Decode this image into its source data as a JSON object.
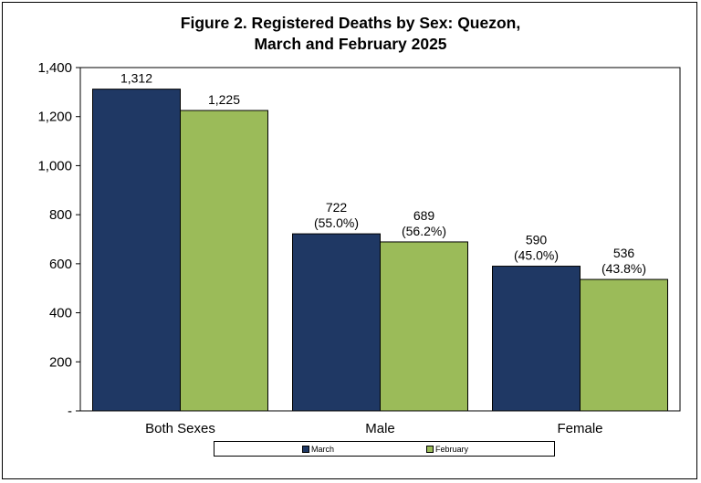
{
  "chart_data": {
    "type": "bar",
    "title_lines": [
      "Figure 2. Registered Deaths by Sex: Quezon,",
      "March and February 2025"
    ],
    "categories": [
      "Both Sexes",
      "Male",
      "Female"
    ],
    "series": [
      {
        "name": "March",
        "color": "#1f3864",
        "values": [
          1312,
          722,
          590
        ],
        "labels": [
          [
            "1,312"
          ],
          [
            "722",
            "(55.0%)"
          ],
          [
            "590",
            "(45.0%)"
          ]
        ]
      },
      {
        "name": "February",
        "color": "#9bbb59",
        "values": [
          1225,
          689,
          536
        ],
        "labels": [
          [
            "1,225"
          ],
          [
            "689",
            "(56.2%)"
          ],
          [
            "536",
            "(43.8%)"
          ]
        ]
      }
    ],
    "ylim": [
      0,
      1400
    ],
    "yticks": [
      0,
      200,
      400,
      600,
      800,
      1000,
      1200,
      1400
    ],
    "ytick_labels": [
      "-",
      "200",
      "400",
      "600",
      "800",
      "1,000",
      "1,200",
      "1,400"
    ],
    "grid": false,
    "legend_position": "bottom"
  }
}
